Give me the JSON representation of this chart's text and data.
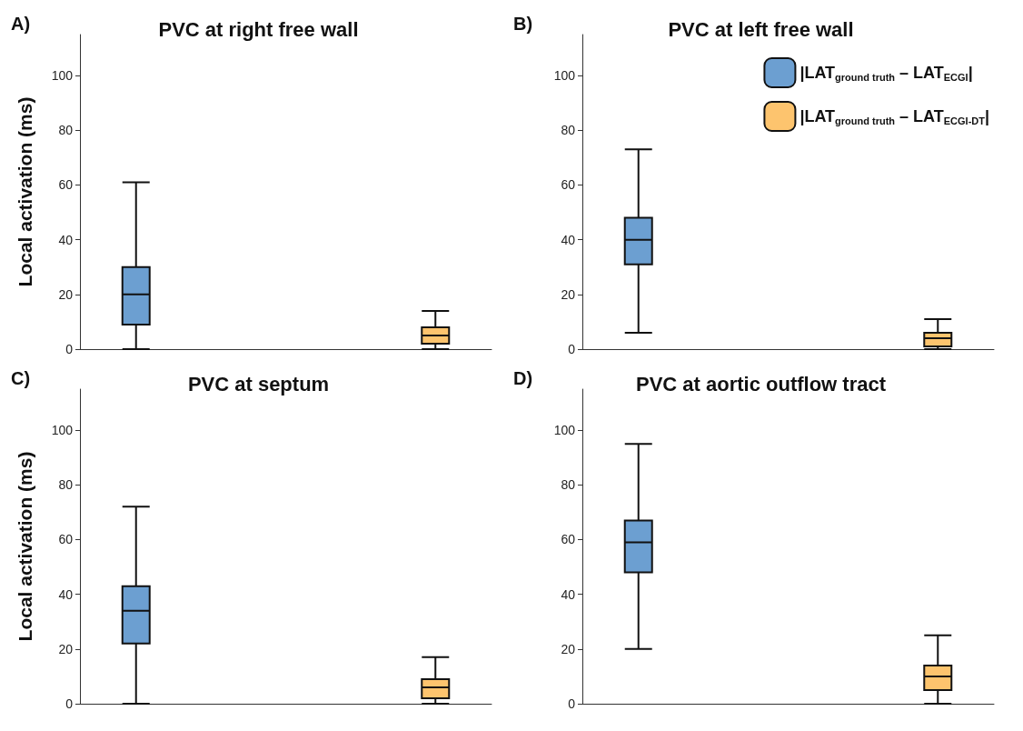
{
  "chart_data": [
    {
      "type": "box",
      "title": "PVC at right free wall",
      "annotations": [
        "A)"
      ],
      "ylabel": "Local activation (ms)",
      "categories": [
        null,
        null
      ],
      "ylim": [
        0,
        115
      ],
      "yticks": [
        0,
        20,
        40,
        60,
        80,
        100
      ],
      "grid": false,
      "legend": false,
      "series": [
        {
          "color": "#6c9fd1",
          "boxes": [
            {
              "low": 0,
              "q1": 9,
              "median": 20,
              "q3": 30,
              "high": 61
            },
            null
          ]
        },
        {
          "color": "#fdc46e",
          "boxes": [
            null,
            {
              "low": 0,
              "q1": 2,
              "median": 5,
              "q3": 8,
              "high": 14
            }
          ]
        }
      ]
    },
    {
      "type": "box",
      "title": "PVC at left free wall",
      "annotations": [
        "B)"
      ],
      "categories": [
        null,
        null
      ],
      "ylim": [
        0,
        115
      ],
      "yticks": [
        0,
        20,
        40,
        60,
        80,
        100
      ],
      "grid": false,
      "legend": "top right",
      "series": [
        {
          "name": "|LAT$_{ground truth}$ – LAT$_{ECGI}$|",
          "color": "#6c9fd1",
          "boxes": [
            {
              "low": 6,
              "q1": 31,
              "median": 40,
              "q3": 48,
              "high": 73
            },
            null
          ]
        },
        {
          "name": "|LAT$_{ground truth}$ – LAT$_{ECGI-DT}$|",
          "color": "#fdc46e",
          "boxes": [
            null,
            {
              "low": 0,
              "q1": 1,
              "median": 4,
              "q3": 6,
              "high": 11
            }
          ]
        }
      ]
    },
    {
      "type": "box",
      "title": "PVC at septum",
      "annotations": [
        "C)"
      ],
      "ylabel": "Local activation (ms)",
      "categories": [
        null,
        null
      ],
      "ylim": [
        0,
        115
      ],
      "yticks": [
        0,
        20,
        40,
        60,
        80,
        100
      ],
      "grid": false,
      "legend": false,
      "series": [
        {
          "color": "#6c9fd1",
          "boxes": [
            {
              "low": 0,
              "q1": 22,
              "median": 34,
              "q3": 43,
              "high": 72
            },
            null
          ]
        },
        {
          "color": "#fdc46e",
          "boxes": [
            null,
            {
              "low": 0,
              "q1": 2,
              "median": 6,
              "q3": 9,
              "high": 17
            }
          ]
        }
      ]
    },
    {
      "type": "box",
      "title": "PVC at aortic outflow tract",
      "annotations": [
        "D)"
      ],
      "categories": [
        null,
        null
      ],
      "ylim": [
        0,
        115
      ],
      "yticks": [
        0,
        20,
        40,
        60,
        80,
        100
      ],
      "grid": false,
      "legend": false,
      "series": [
        {
          "color": "#6c9fd1",
          "boxes": [
            {
              "low": 20,
              "q1": 48,
              "median": 59,
              "q3": 67,
              "high": 95
            },
            null
          ]
        },
        {
          "color": "#fdc46e",
          "boxes": [
            null,
            {
              "low": 0,
              "q1": 5,
              "median": 10,
              "q3": 14,
              "high": 25
            }
          ]
        }
      ]
    }
  ]
}
